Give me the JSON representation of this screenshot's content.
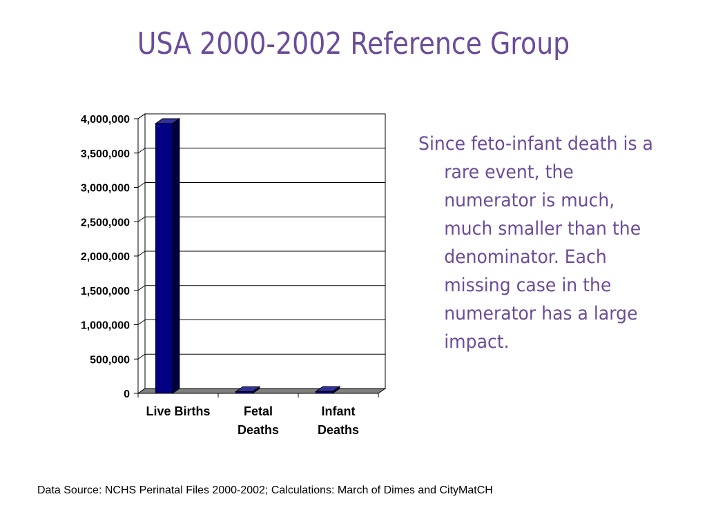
{
  "slide": {
    "title": "USA 2000-2002 Reference Group",
    "side_text": "Since feto-infant death is a rare event, the numerator is much, much smaller than the denominator. Each missing case in the numerator has a large impact.",
    "source": "Data Source: NCHS Perinatal Files 2000-2002; Calculations: March of Dimes and CityMatCH",
    "text_color": "#6b4c9a"
  },
  "chart_data": {
    "type": "bar",
    "categories": [
      [
        "Live Births"
      ],
      [
        "Fetal",
        "Deaths"
      ],
      [
        "Infant",
        "Deaths"
      ]
    ],
    "values": [
      3930000,
      25000,
      28000
    ],
    "ylim": [
      0,
      4000000
    ],
    "yticks": [
      0,
      500000,
      1000000,
      1500000,
      2000000,
      2500000,
      3000000,
      3500000,
      4000000
    ],
    "ytick_labels": [
      "0",
      "500,000",
      "1,000,000",
      "1,500,000",
      "2,000,000",
      "2,500,000",
      "3,000,000",
      "3,500,000",
      "4,000,000"
    ],
    "grid": true,
    "legend": false,
    "style": "3d-column",
    "bar_color": "#000080"
  }
}
